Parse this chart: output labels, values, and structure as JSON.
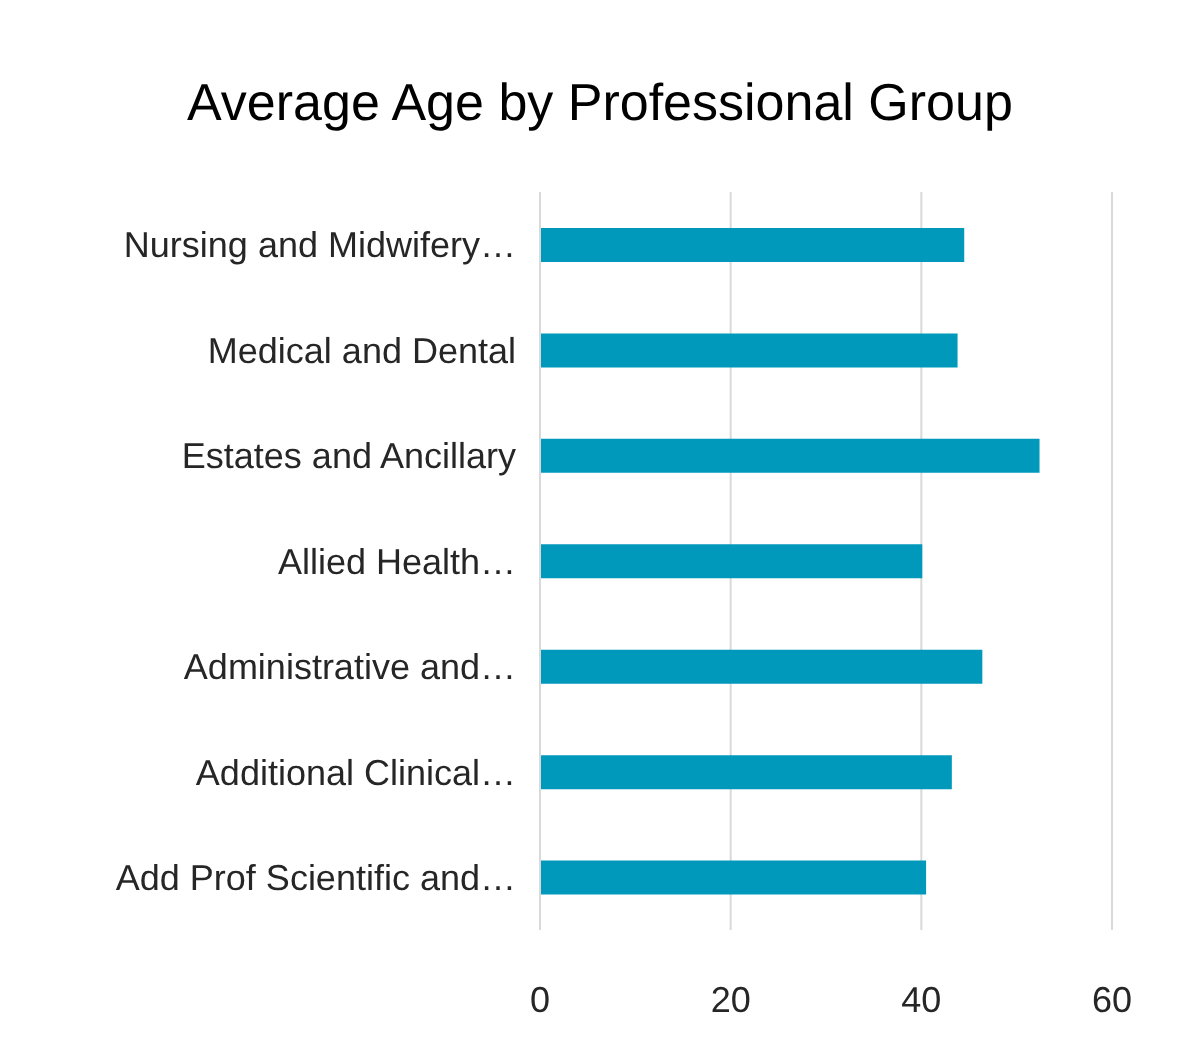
{
  "chart_data": {
    "type": "bar",
    "orientation": "horizontal",
    "title": "Average Age by Professional Group",
    "categories": [
      "Nursing and Midwifery…",
      "Medical and Dental",
      "Estates and Ancillary",
      "Allied Health…",
      "Administrative and…",
      "Additional Clinical…",
      "Add Prof Scientific and…"
    ],
    "values": [
      44.5,
      43.8,
      52.4,
      40.1,
      46.4,
      43.2,
      40.5
    ],
    "color": "#0099bc",
    "xlim": [
      0,
      60
    ],
    "xticks": [
      0,
      20,
      40,
      60
    ],
    "grid": "x"
  }
}
